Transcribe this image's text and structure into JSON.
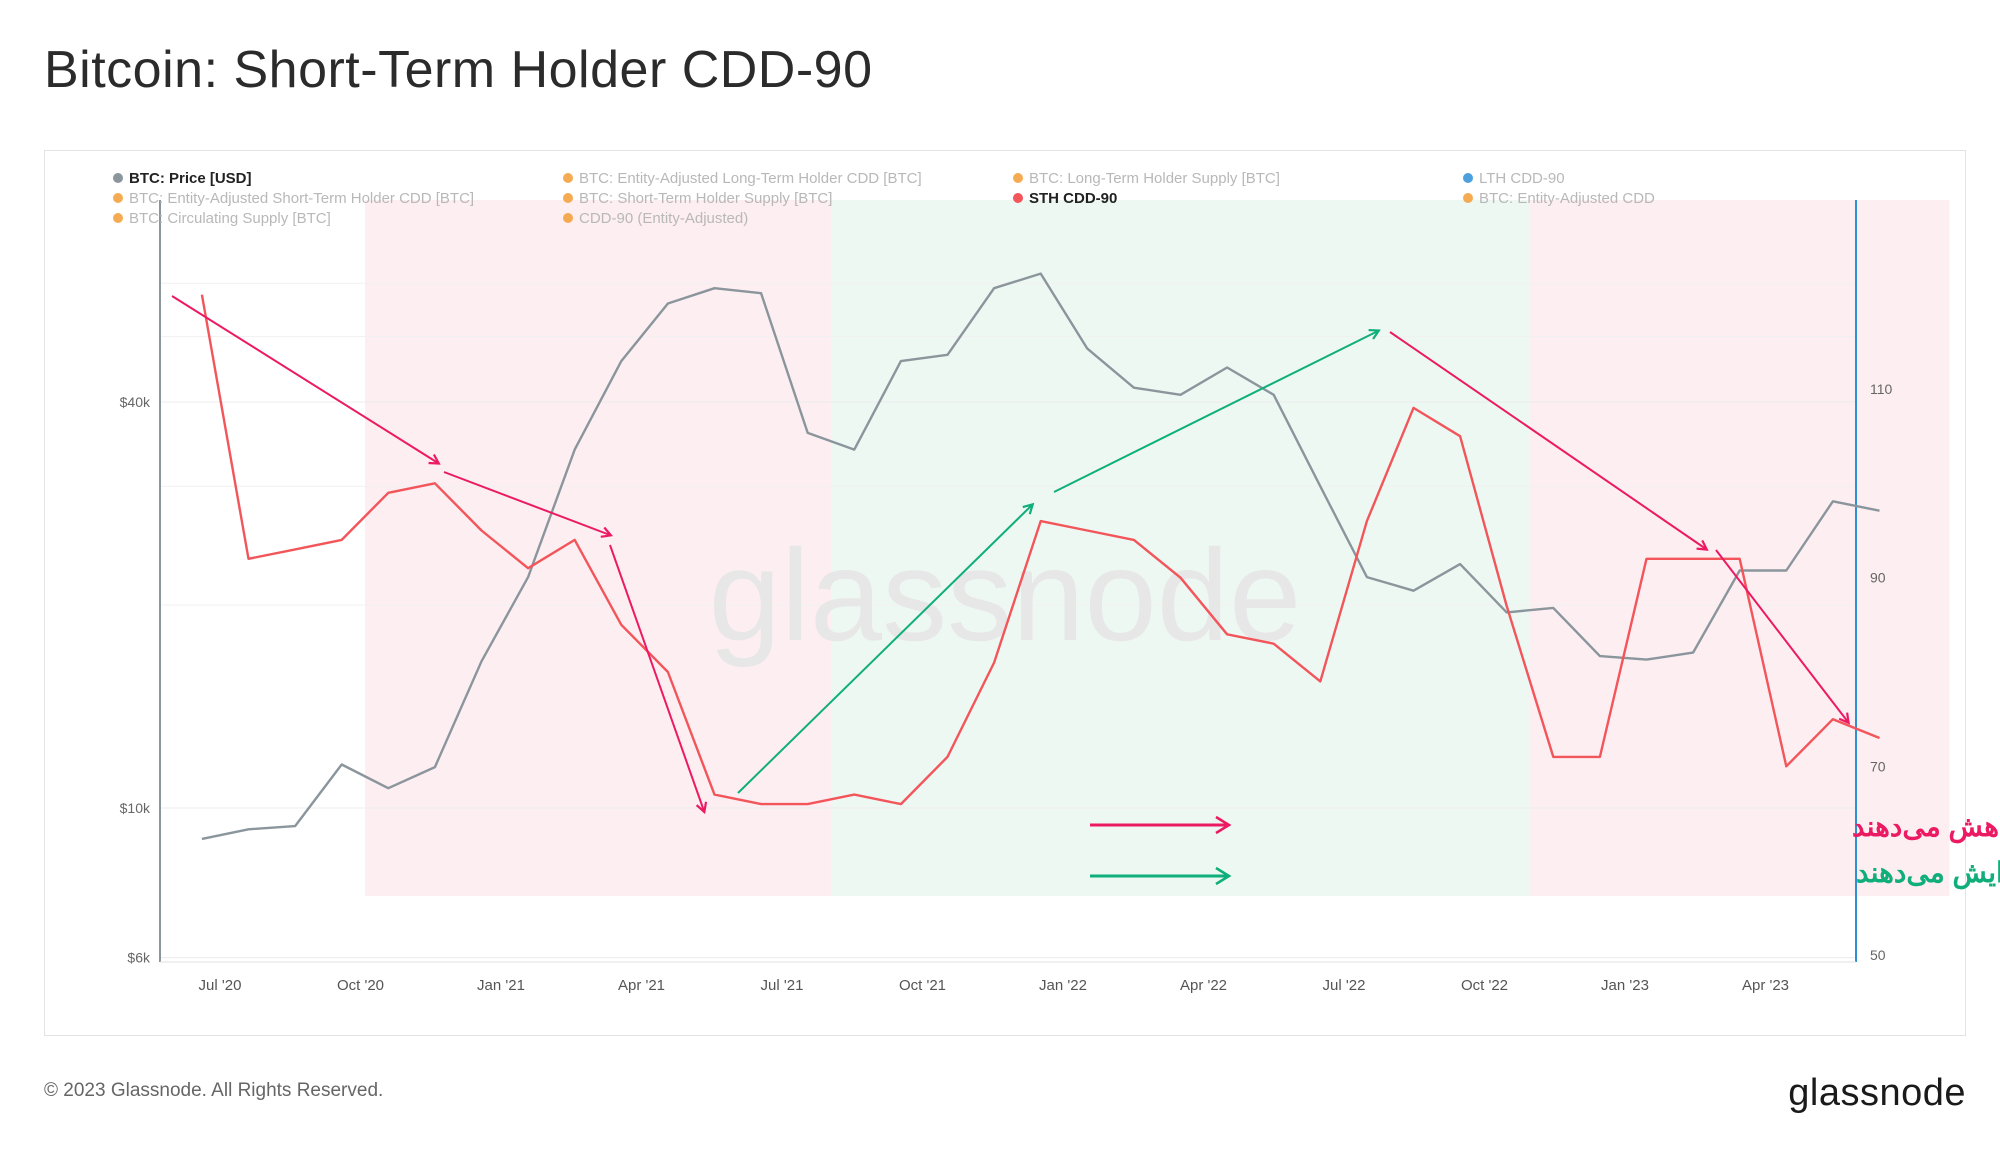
{
  "title": "Bitcoin: Short-Term Holder CDD-90",
  "footer": "© 2023 Glassnode. All Rights Reserved.",
  "brand": "glassnode",
  "watermark": "glassnode",
  "colors": {
    "price": "#8a959c",
    "sth_cdd": "#f2555a",
    "red_arrow": "#ec1a62",
    "green_arrow": "#0fae7a",
    "red_region": "#fdeef2",
    "green_region": "#eef8f3",
    "right_axis": "#2d8fd6"
  },
  "legend": [
    {
      "label": "BTC: Price [USD]",
      "color": "#8a959c",
      "active": true
    },
    {
      "label": "BTC: Entity-Adjusted Long-Term Holder CDD [BTC]",
      "color": "#f39c34",
      "active": false
    },
    {
      "label": "BTC: Long-Term Holder Supply [BTC]",
      "color": "#f39c34",
      "active": false
    },
    {
      "label": "LTH CDD-90",
      "color": "#2d8fd6",
      "active": false
    },
    {
      "label": "BTC: Entity-Adjusted Short-Term Holder CDD [BTC]",
      "color": "#f39c34",
      "active": false
    },
    {
      "label": "BTC: Short-Term Holder Supply [BTC]",
      "color": "#f39c34",
      "active": false
    },
    {
      "label": "STH CDD-90",
      "color": "#f2555a",
      "active": true
    },
    {
      "label": "BTC: Entity-Adjusted CDD",
      "color": "#f39c34",
      "active": false
    },
    {
      "label": "BTC: Circulating Supply [BTC]",
      "color": "#f39c34",
      "active": false
    },
    {
      "label": "CDD-90 (Entity-Adjusted)",
      "color": "#f39c34",
      "active": false
    }
  ],
  "annotations": {
    "decrease": "سرمایه‌گذاران کوتاه‌مدت عرضه خود را کاهش می‌دهند",
    "increase": "سرمایه‌گذاران کوتاه‌مدت عرضه خود را افزایش می‌دهند"
  },
  "chart_data": {
    "type": "line",
    "x_tick_labels": [
      "Jul '20",
      "Oct '20",
      "Jan '21",
      "Apr '21",
      "Jul '21",
      "Oct '21",
      "Jan '22",
      "Apr '22",
      "Jul '22",
      "Oct '22",
      "Jan '23",
      "Apr '23"
    ],
    "left_axis": {
      "tick_labels": [
        "$40k",
        "$10k",
        "$6k"
      ],
      "ticks": [
        40000,
        10000,
        6000
      ],
      "scale": "log"
    },
    "right_axis": {
      "tick_labels": [
        "110",
        "90",
        "70",
        "50"
      ],
      "ticks": [
        110,
        90,
        70,
        50
      ],
      "range": [
        50,
        130
      ]
    },
    "regions": [
      {
        "from": "2020-09",
        "to": "2021-06",
        "color": "red"
      },
      {
        "from": "2021-07",
        "to": "2022-10",
        "color": "green"
      },
      {
        "from": "2022-10",
        "to": "2023-06",
        "color": "red"
      }
    ],
    "series": [
      {
        "name": "BTC: Price [USD]",
        "axis": "left",
        "x": [
          "2020-05",
          "2020-06",
          "2020-07",
          "2020-08",
          "2020-09",
          "2020-10",
          "2020-11",
          "2020-12",
          "2021-01",
          "2021-02",
          "2021-03",
          "2021-04",
          "2021-05",
          "2021-06",
          "2021-07",
          "2021-08",
          "2021-09",
          "2021-10",
          "2021-11",
          "2021-12",
          "2022-01",
          "2022-02",
          "2022-03",
          "2022-04",
          "2022-05",
          "2022-06",
          "2022-07",
          "2022-08",
          "2022-09",
          "2022-10",
          "2022-11",
          "2022-12",
          "2023-01",
          "2023-02",
          "2023-03",
          "2023-04",
          "2023-05"
        ],
        "y": [
          9000,
          9300,
          9400,
          11600,
          10700,
          11500,
          16500,
          22000,
          34000,
          46000,
          56000,
          59000,
          58000,
          36000,
          34000,
          46000,
          47000,
          59000,
          62000,
          48000,
          42000,
          41000,
          45000,
          41000,
          30000,
          22000,
          21000,
          23000,
          19500,
          19800,
          16800,
          16600,
          17000,
          22500,
          22500,
          28500,
          27600
        ]
      },
      {
        "name": "STH CDD-90",
        "axis": "right",
        "x": [
          "2020-05",
          "2020-06",
          "2020-07",
          "2020-08",
          "2020-09",
          "2020-10",
          "2020-11",
          "2020-12",
          "2021-01",
          "2021-02",
          "2021-03",
          "2021-04",
          "2021-05",
          "2021-06",
          "2021-07",
          "2021-08",
          "2021-09",
          "2021-10",
          "2021-11",
          "2021-12",
          "2022-01",
          "2022-02",
          "2022-03",
          "2022-04",
          "2022-05",
          "2022-06",
          "2022-07",
          "2022-08",
          "2022-09",
          "2022-10",
          "2022-11",
          "2022-12",
          "2023-01",
          "2023-02",
          "2023-03",
          "2023-04",
          "2023-05"
        ],
        "y": [
          120,
          92,
          93,
          94,
          99,
          100,
          95,
          91,
          94,
          85,
          80,
          67,
          66,
          66,
          67,
          66,
          71,
          81,
          96,
          95,
          94,
          90,
          84,
          83,
          79,
          96,
          108,
          105,
          87,
          71,
          71,
          92,
          92,
          92,
          70,
          75,
          73
        ]
      }
    ]
  }
}
